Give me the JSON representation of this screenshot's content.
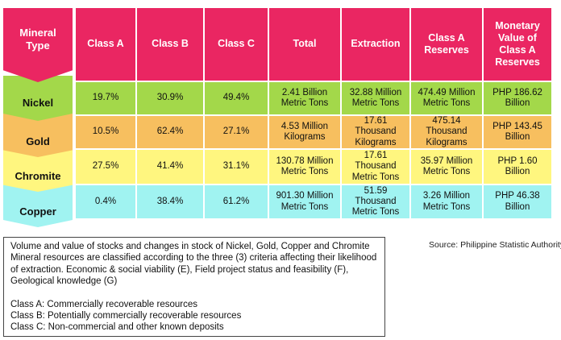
{
  "header": {
    "mineral_type_label": "Mineral Type",
    "columns": [
      "Class A",
      "Class B",
      "Class C",
      "Total",
      "Extraction",
      "Class A Reserves",
      "Monetary Value of Class A Reserves"
    ]
  },
  "rows": [
    {
      "mineral": "Nickel",
      "cells": [
        "19.7%",
        "30.9%",
        "49.4%",
        "2.41 Billion Metric Tons",
        "32.88 Million Metric Tons",
        "474.49 Million Metric Tons",
        "PHP 186.62 Billion"
      ]
    },
    {
      "mineral": "Gold",
      "cells": [
        "10.5%",
        "62.4%",
        "27.1%",
        "4.53 Million Kilograms",
        "17.61 Thousand Kilograms",
        "475.14 Thousand Kilograms",
        "PHP 143.45 Billion"
      ]
    },
    {
      "mineral": "Chromite",
      "cells": [
        "27.5%",
        "41.4%",
        "31.1%",
        "130.78 Million Metric Tons",
        "17.61 Thousand Metric Tons",
        "35.97 Million Metric Tons",
        "PHP 1.60 Billion"
      ]
    },
    {
      "mineral": "Copper",
      "cells": [
        "0.4%",
        "38.4%",
        "61.2%",
        "901.30 Million Metric Tons",
        "51.59 Thousand Metric Tons",
        "3.26 Million Metric Tons",
        "PHP 46.38 Billion"
      ]
    }
  ],
  "notes": {
    "description": "Volume and value of stocks and changes in stock of Nickel, Gold, Copper and Chromite Mineral resources are classified according to the three (3) criteria affecting their likelihood of extraction. Economic & social viability (E), Field project status and feasibility (F), Geological knowledge (G)",
    "class_a": "Class A: Commercially recoverable resources",
    "class_b": "Class B: Potentially commercially recoverable resources",
    "class_c": "Class C: Non-commercial and other known deposits"
  },
  "source": "Source: Philippine Statistic Authority",
  "colors": {
    "header": "#ea2662",
    "nickel": "#a3d84a",
    "gold": "#f7bf5f",
    "chromite": "#fff67f",
    "copper": "#a0f3f1"
  }
}
